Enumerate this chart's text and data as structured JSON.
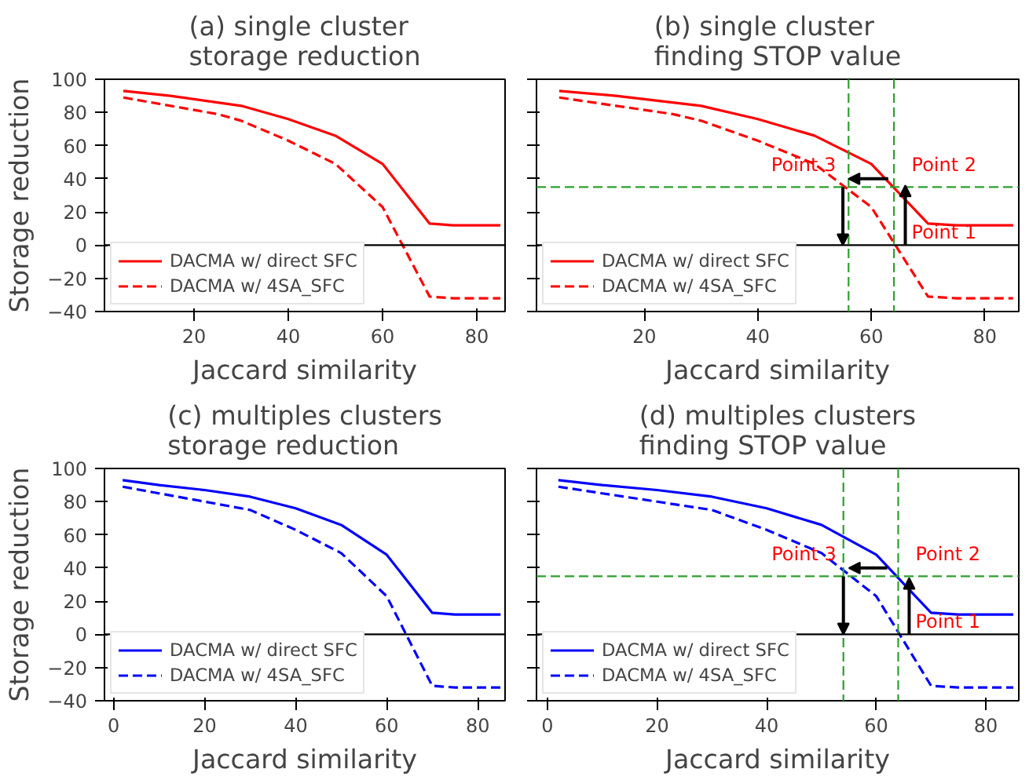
{
  "chart_data": [
    {
      "type": "line",
      "title": "(a) single cluster\nstorage reduction",
      "xlabel": "Jaccard similarity",
      "ylabel": "Storage reduction",
      "xlim": [
        1,
        86
      ],
      "xticks": [
        20,
        40,
        60,
        80
      ],
      "ylim": [
        -40,
        100
      ],
      "yticks": [
        -40,
        -20,
        0,
        20,
        40,
        60,
        80,
        100
      ],
      "legend": "bottom left",
      "grid": false,
      "x": [
        5,
        15,
        25,
        30,
        40,
        50,
        60,
        70,
        75,
        85
      ],
      "series": [
        {
          "name": "DACMA w/ direct SFC",
          "color": "#ff0000",
          "line_style": "solid",
          "values": [
            93,
            90,
            86,
            84,
            76,
            66,
            49,
            13,
            12,
            12
          ]
        },
        {
          "name": "DACMA w/ 4SA_SFC",
          "color": "#ff0000",
          "line_style": "dashed",
          "values": [
            89,
            84,
            79,
            75,
            63,
            49,
            23,
            -31,
            -32,
            -32
          ]
        }
      ],
      "ref_lines": [
        {
          "axis": "y",
          "value": 0,
          "color": "#000000",
          "line_style": "solid"
        }
      ]
    },
    {
      "type": "line",
      "title": "(b) single cluster\nfinding STOP value",
      "xlabel": "Jaccard similarity",
      "xlim": [
        1,
        86
      ],
      "xticks": [
        20,
        40,
        60,
        80
      ],
      "ylim": [
        -40,
        100
      ],
      "yticks": [
        -40,
        -20,
        0,
        20,
        40,
        60,
        80,
        100
      ],
      "tick_labels": "x",
      "legend": "bottom left",
      "grid": false,
      "x": [
        5,
        15,
        25,
        30,
        40,
        50,
        60,
        70,
        75,
        85
      ],
      "series": [
        {
          "name": "DACMA w/ direct SFC",
          "color": "#ff0000",
          "line_style": "solid",
          "values": [
            93,
            90,
            86,
            84,
            76,
            66,
            49,
            13,
            12,
            12
          ]
        },
        {
          "name": "DACMA w/ 4SA_SFC",
          "color": "#ff0000",
          "line_style": "dashed",
          "values": [
            89,
            84,
            79,
            75,
            63,
            49,
            23,
            -31,
            -32,
            -32
          ]
        }
      ],
      "ref_lines": [
        {
          "axis": "y",
          "value": 0,
          "color": "#000000",
          "line_style": "solid"
        },
        {
          "axis": "y",
          "value": 35,
          "color": "#2ca02c",
          "line_style": "dashed"
        },
        {
          "axis": "x",
          "value": 56,
          "color": "#2ca02c",
          "line_style": "dashed"
        },
        {
          "axis": "x",
          "value": 64,
          "color": "#2ca02c",
          "line_style": "dashed"
        }
      ],
      "annotations": [
        {
          "text": "Point 1",
          "x": 66,
          "y": 36
        },
        {
          "text": "Point 2",
          "x": 63,
          "y": 40
        },
        {
          "text": "Point 3",
          "x": 56,
          "y": 35
        }
      ]
    },
    {
      "type": "line",
      "title": "(c) multiples clusters\nstorage reduction",
      "xlabel": "Jaccard similarity",
      "ylabel": "Storage reduction",
      "xlim": [
        -2,
        86
      ],
      "xticks": [
        0,
        20,
        40,
        60,
        80
      ],
      "ylim": [
        -40,
        100
      ],
      "yticks": [
        -40,
        -20,
        0,
        20,
        40,
        60,
        80,
        100
      ],
      "legend": "bottom left",
      "grid": false,
      "x": [
        2,
        10,
        20,
        30,
        40,
        50,
        60,
        70,
        75,
        85
      ],
      "series": [
        {
          "name": "DACMA w/ direct SFC",
          "color": "#0000ff",
          "line_style": "solid",
          "values": [
            93,
            90,
            87,
            83,
            76,
            66,
            48,
            13,
            12,
            12
          ]
        },
        {
          "name": "DACMA w/ 4SA_SFC",
          "color": "#0000ff",
          "line_style": "dashed",
          "values": [
            89,
            85,
            80,
            75,
            63,
            49,
            23,
            -31,
            -32,
            -32
          ]
        }
      ],
      "ref_lines": [
        {
          "axis": "y",
          "value": 0,
          "color": "#000000",
          "line_style": "solid"
        }
      ]
    },
    {
      "type": "line",
      "title": "(d) multiples clusters\nfinding STOP value",
      "xlabel": "Jaccard similarity",
      "xlim": [
        -2,
        86
      ],
      "xticks": [
        0,
        20,
        40,
        60,
        80
      ],
      "ylim": [
        -40,
        100
      ],
      "yticks": [
        -40,
        -20,
        0,
        20,
        40,
        60,
        80,
        100
      ],
      "tick_labels": "x",
      "legend": "bottom left",
      "grid": false,
      "x": [
        2,
        10,
        20,
        30,
        40,
        50,
        60,
        70,
        75,
        85
      ],
      "series": [
        {
          "name": "DACMA w/ direct SFC",
          "color": "#0000ff",
          "line_style": "solid",
          "values": [
            93,
            90,
            87,
            83,
            76,
            66,
            48,
            13,
            12,
            12
          ]
        },
        {
          "name": "DACMA w/ 4SA_SFC",
          "color": "#0000ff",
          "line_style": "dashed",
          "values": [
            89,
            85,
            80,
            75,
            63,
            49,
            23,
            -31,
            -32,
            -32
          ]
        }
      ],
      "ref_lines": [
        {
          "axis": "y",
          "value": 0,
          "color": "#000000",
          "line_style": "solid"
        },
        {
          "axis": "y",
          "value": 35,
          "color": "#2ca02c",
          "line_style": "dashed"
        },
        {
          "axis": "x",
          "value": 54,
          "color": "#2ca02c",
          "line_style": "dashed"
        },
        {
          "axis": "x",
          "value": 64,
          "color": "#2ca02c",
          "line_style": "dashed"
        }
      ],
      "annotations": [
        {
          "text": "Point 1",
          "x": 66,
          "y": 34
        },
        {
          "text": "Point 2",
          "x": 62,
          "y": 40
        },
        {
          "text": "Point 3",
          "x": 55,
          "y": 35
        }
      ]
    }
  ]
}
